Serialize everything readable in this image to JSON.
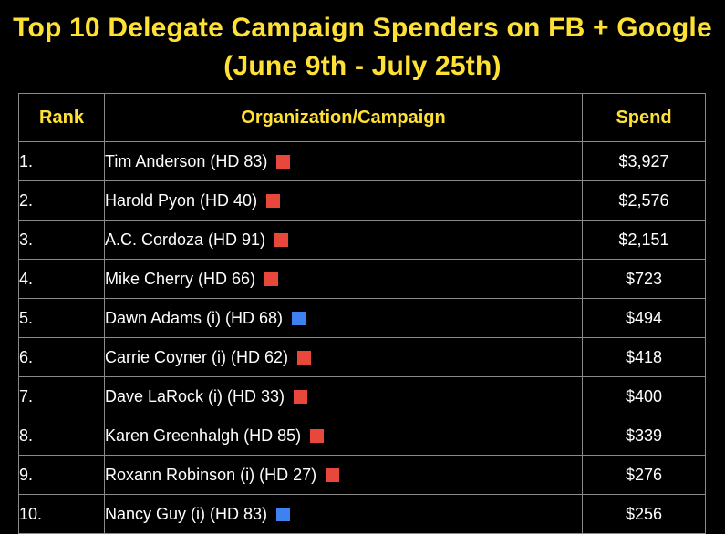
{
  "colors": {
    "title": "#FFE135",
    "header_text": "#FFE135",
    "text": "#ffffff",
    "background": "#000000",
    "grid": "#8a8a8a",
    "party_marker": {
      "red": "#E8473C",
      "blue": "#3E82F1"
    }
  },
  "chart_data": {
    "type": "table",
    "title": "Top 10 Delegate Campaign Spenders on FB + Google (June 9th - July 25th)",
    "columns": [
      "Rank",
      "Organization/Campaign",
      "Spend"
    ],
    "rows": [
      {
        "rank": "1.",
        "campaign": "Tim Anderson (HD 83)",
        "spend": "$3,927",
        "marker": "red"
      },
      {
        "rank": "2.",
        "campaign": "Harold Pyon (HD 40)",
        "spend": "$2,576",
        "marker": "red"
      },
      {
        "rank": "3.",
        "campaign": "A.C. Cordoza (HD 91)",
        "spend": "$2,151",
        "marker": "red"
      },
      {
        "rank": "4.",
        "campaign": "Mike Cherry (HD 66)",
        "spend": "$723",
        "marker": "red"
      },
      {
        "rank": "5.",
        "campaign": "Dawn Adams (i) (HD 68)",
        "spend": "$494",
        "marker": "blue"
      },
      {
        "rank": "6.",
        "campaign": "Carrie Coyner (i) (HD 62)",
        "spend": "$418",
        "marker": "red"
      },
      {
        "rank": "7.",
        "campaign": "Dave LaRock (i) (HD 33)",
        "spend": "$400",
        "marker": "red"
      },
      {
        "rank": "8.",
        "campaign": "Karen Greenhalgh (HD 85)",
        "spend": "$339",
        "marker": "red"
      },
      {
        "rank": "9.",
        "campaign": "Roxann Robinson (i) (HD 27)",
        "spend": "$276",
        "marker": "red"
      },
      {
        "rank": "10.",
        "campaign": "Nancy Guy (i) (HD 83)",
        "spend": "$256",
        "marker": "blue"
      }
    ]
  }
}
